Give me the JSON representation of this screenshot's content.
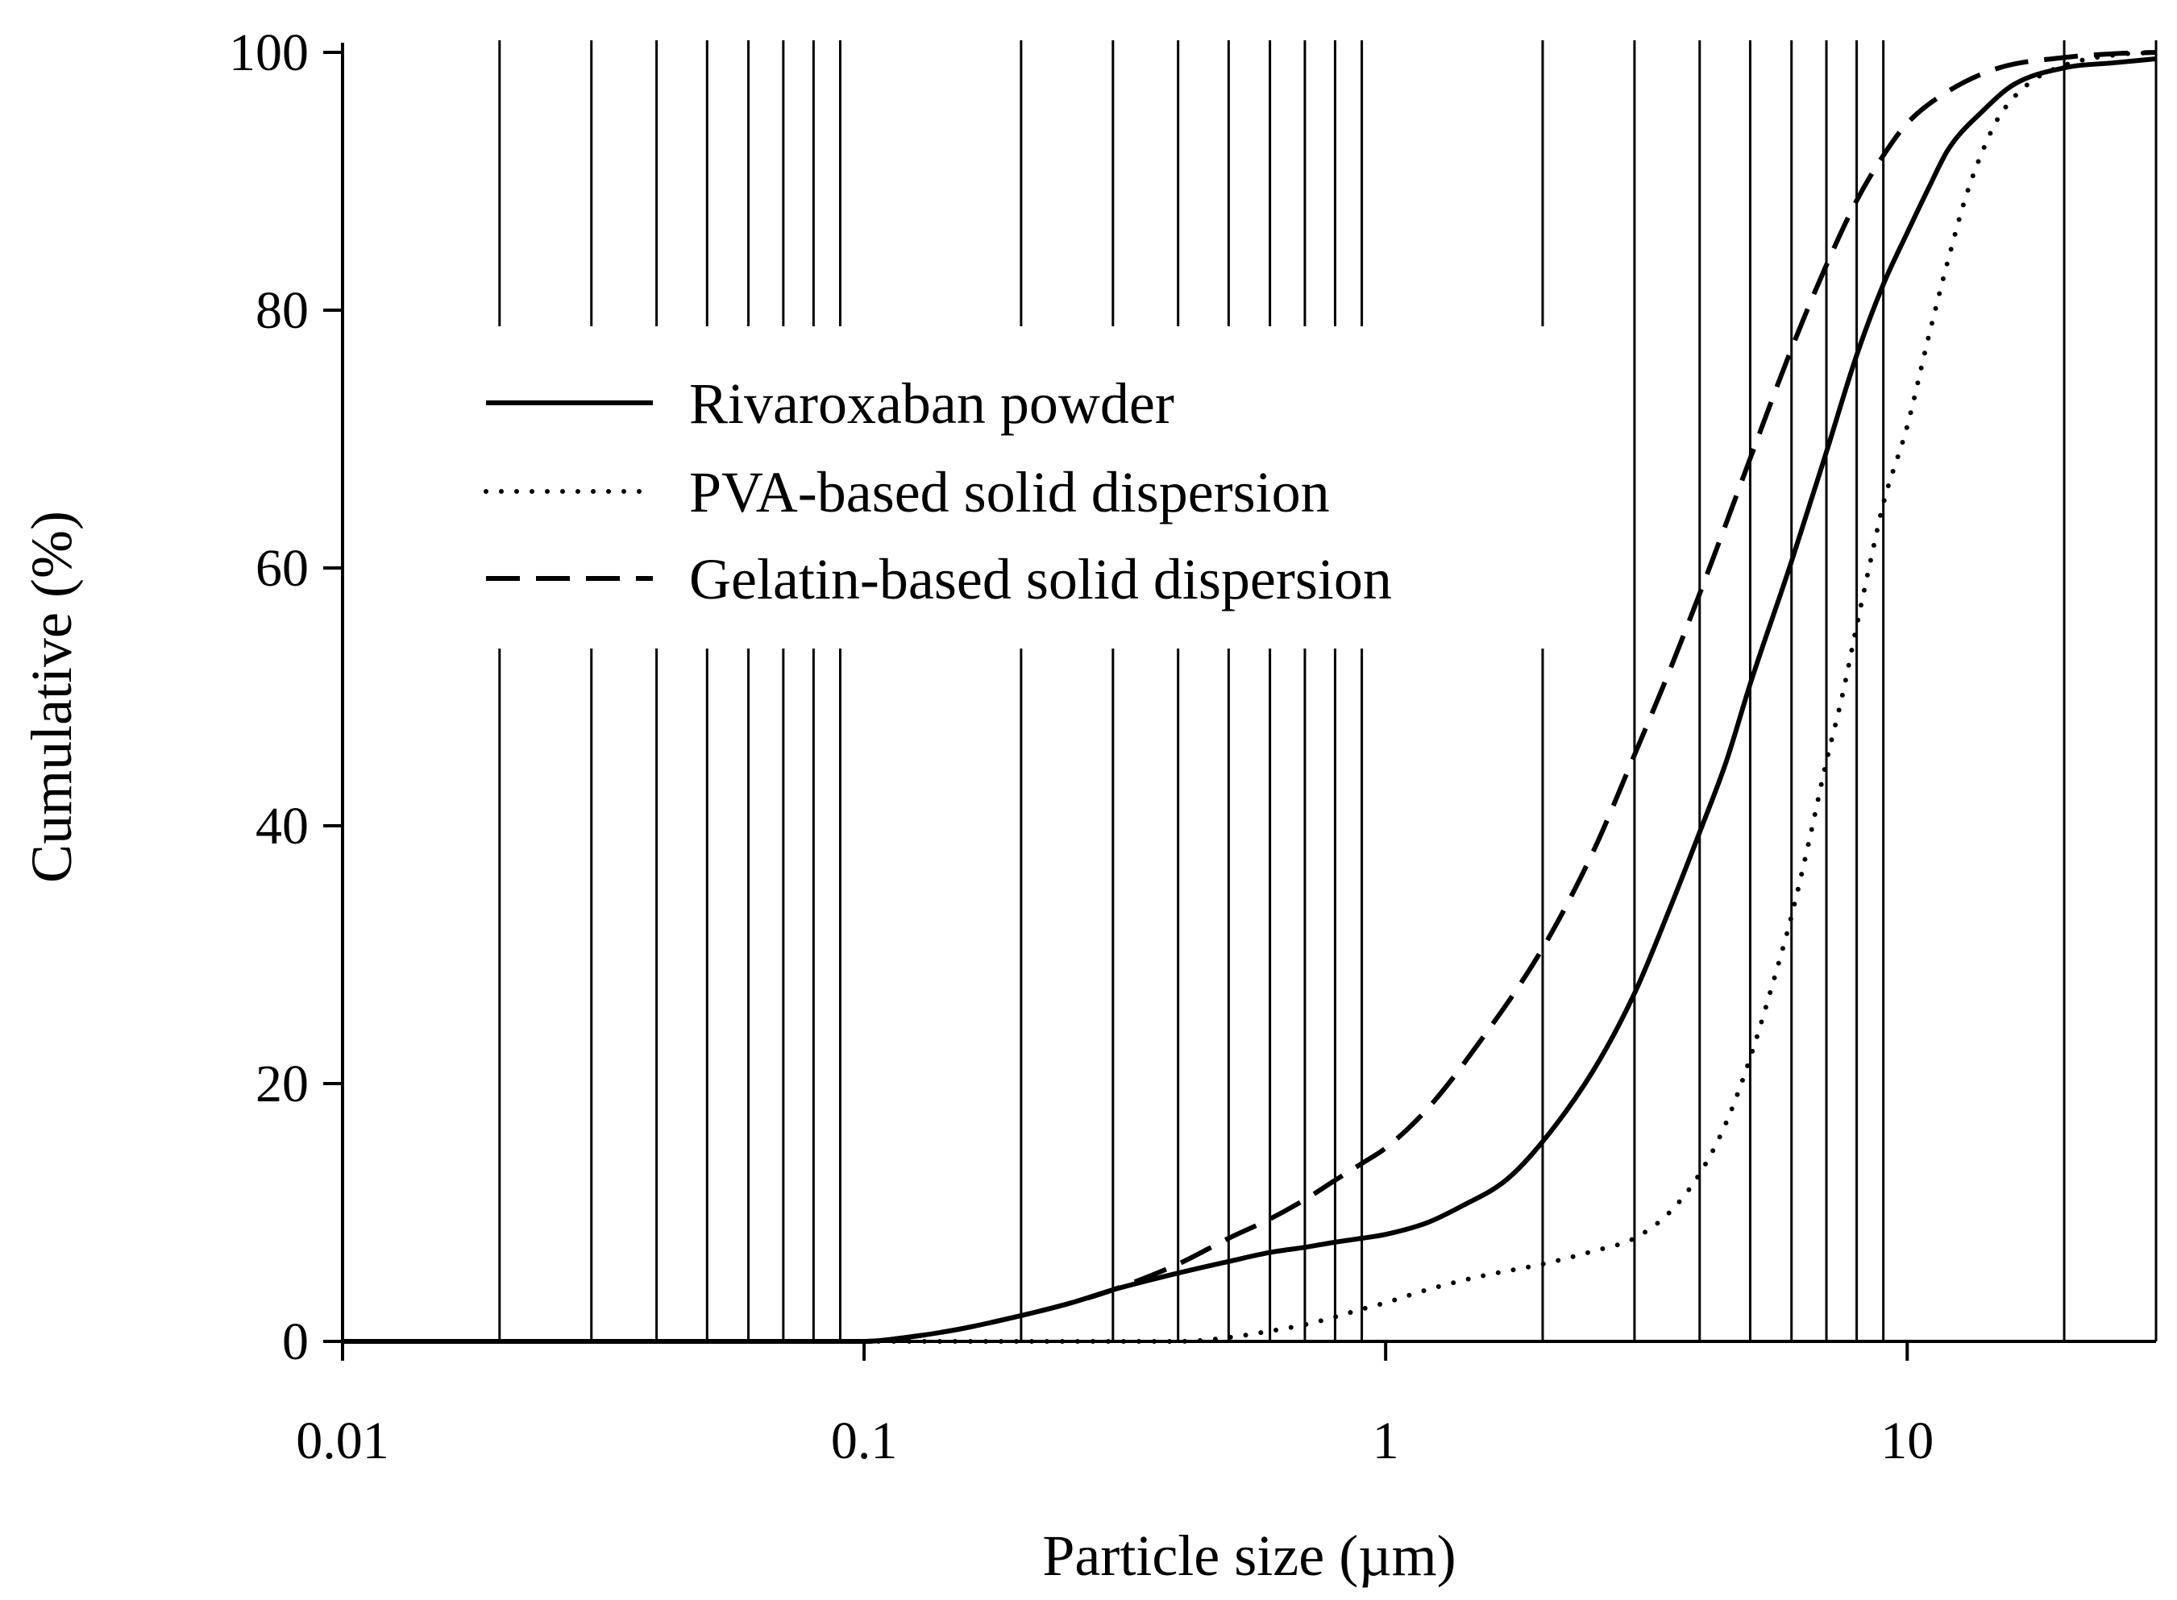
{
  "chart_data": {
    "type": "line",
    "title": "",
    "xlabel": "Particle size (µm)",
    "ylabel": "Cumulative (%)",
    "xscale": "log",
    "xlim": [
      0.01,
      30
    ],
    "ylim": [
      0,
      100
    ],
    "xticks": [
      {
        "value": 0.01,
        "label": "0.01"
      },
      {
        "value": 0.1,
        "label": "0.1"
      },
      {
        "value": 1,
        "label": "1"
      },
      {
        "value": 10,
        "label": "10"
      }
    ],
    "yticks": [
      {
        "value": 0,
        "label": "0"
      },
      {
        "value": 20,
        "label": "20"
      },
      {
        "value": 40,
        "label": "40"
      },
      {
        "value": 60,
        "label": "60"
      },
      {
        "value": 80,
        "label": "80"
      },
      {
        "value": 100,
        "label": "100"
      }
    ],
    "grid": {
      "vertical": true,
      "horizontal": false,
      "values": [
        0.02,
        0.03,
        0.04,
        0.05,
        0.06,
        0.07,
        0.08,
        0.09,
        0.2,
        0.3,
        0.4,
        0.5,
        0.6,
        0.7,
        0.8,
        0.9,
        2,
        3,
        4,
        5,
        6,
        7,
        8,
        9,
        20,
        30
      ]
    },
    "legend_position": "upper-left",
    "series": [
      {
        "name": "Rivaroxaban powder",
        "style": "solid",
        "points": [
          [
            0.01,
            0
          ],
          [
            0.05,
            0
          ],
          [
            0.1,
            0
          ],
          [
            0.12,
            0.3
          ],
          [
            0.15,
            0.9
          ],
          [
            0.2,
            2
          ],
          [
            0.25,
            3
          ],
          [
            0.3,
            4
          ],
          [
            0.4,
            5.3
          ],
          [
            0.5,
            6.2
          ],
          [
            0.6,
            6.9
          ],
          [
            0.7,
            7.3
          ],
          [
            0.8,
            7.7
          ],
          [
            0.9,
            8
          ],
          [
            1,
            8.3
          ],
          [
            1.2,
            9.2
          ],
          [
            1.4,
            10.5
          ],
          [
            1.7,
            12.5
          ],
          [
            2,
            15.5
          ],
          [
            2.5,
            21
          ],
          [
            3,
            27
          ],
          [
            3.5,
            33.5
          ],
          [
            4,
            39.5
          ],
          [
            4.5,
            45
          ],
          [
            5,
            51
          ],
          [
            6,
            60.5
          ],
          [
            7,
            69
          ],
          [
            8,
            76.5
          ],
          [
            9,
            82
          ],
          [
            10,
            86
          ],
          [
            11,
            89.5
          ],
          [
            12,
            92.5
          ],
          [
            14,
            95.5
          ],
          [
            16,
            97.5
          ],
          [
            20,
            98.8
          ],
          [
            25,
            99.2
          ],
          [
            30,
            99.5
          ]
        ]
      },
      {
        "name": "PVA-based solid dispersion",
        "style": "dotted",
        "points": [
          [
            0.01,
            0
          ],
          [
            0.1,
            0
          ],
          [
            0.2,
            0
          ],
          [
            0.3,
            0
          ],
          [
            0.4,
            0
          ],
          [
            0.5,
            0.3
          ],
          [
            0.6,
            0.8
          ],
          [
            0.7,
            1.3
          ],
          [
            0.8,
            1.9
          ],
          [
            0.9,
            2.5
          ],
          [
            1,
            3
          ],
          [
            1.2,
            4
          ],
          [
            1.5,
            5
          ],
          [
            2,
            6
          ],
          [
            2.5,
            7
          ],
          [
            3,
            8
          ],
          [
            3.5,
            10
          ],
          [
            4,
            13
          ],
          [
            4.5,
            17
          ],
          [
            5,
            22
          ],
          [
            5.5,
            27.5
          ],
          [
            6,
            33
          ],
          [
            6.5,
            39
          ],
          [
            7,
            45
          ],
          [
            7.5,
            50
          ],
          [
            8,
            55.5
          ],
          [
            8.5,
            60.5
          ],
          [
            9,
            65
          ],
          [
            10,
            71
          ],
          [
            11,
            78
          ],
          [
            12,
            84
          ],
          [
            13,
            89
          ],
          [
            14,
            92.5
          ],
          [
            15,
            95
          ],
          [
            17,
            97.5
          ],
          [
            20,
            99
          ],
          [
            25,
            99.8
          ],
          [
            30,
            100
          ]
        ]
      },
      {
        "name": "Gelatin-based solid dispersion",
        "style": "dashed",
        "points": [
          [
            0.01,
            0
          ],
          [
            0.05,
            0
          ],
          [
            0.1,
            0
          ],
          [
            0.12,
            0.3
          ],
          [
            0.15,
            0.9
          ],
          [
            0.2,
            2
          ],
          [
            0.25,
            3
          ],
          [
            0.3,
            4
          ],
          [
            0.4,
            6
          ],
          [
            0.5,
            8
          ],
          [
            0.6,
            9.5
          ],
          [
            0.7,
            11
          ],
          [
            0.8,
            12.5
          ],
          [
            0.9,
            13.8
          ],
          [
            1,
            15
          ],
          [
            1.2,
            18
          ],
          [
            1.5,
            23
          ],
          [
            2,
            30.5
          ],
          [
            2.5,
            38
          ],
          [
            3,
            45.5
          ],
          [
            3.5,
            52
          ],
          [
            4,
            58
          ],
          [
            4.5,
            63.5
          ],
          [
            5,
            68.5
          ],
          [
            6,
            77
          ],
          [
            7,
            83.5
          ],
          [
            8,
            88.5
          ],
          [
            9,
            92
          ],
          [
            10,
            94.5
          ],
          [
            12,
            97
          ],
          [
            15,
            98.8
          ],
          [
            20,
            99.6
          ],
          [
            25,
            99.9
          ],
          [
            30,
            100
          ]
        ]
      }
    ]
  }
}
